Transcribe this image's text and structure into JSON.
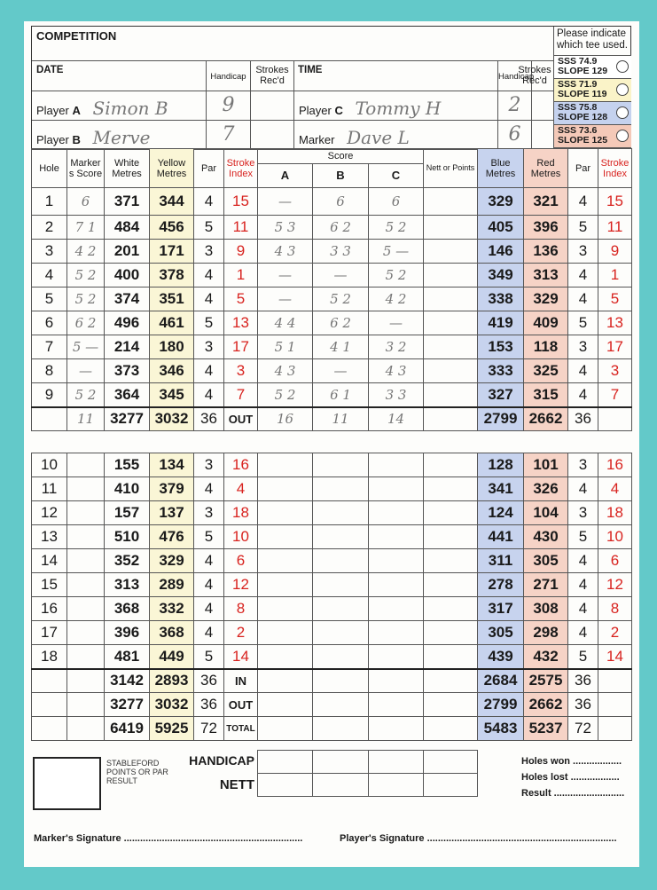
{
  "header": {
    "competition_label": "COMPETITION",
    "tee_note": "Please indicate which tee used.",
    "date_label": "DATE",
    "time_label": "TIME",
    "handicap_label": "Handicap",
    "strokes_label": "Strokes Rec'd",
    "players": [
      {
        "label_prefix": "Player",
        "label_letter": "A",
        "name": "Simon B",
        "handicap": "9"
      },
      {
        "label_prefix": "Player",
        "label_letter": "B",
        "name": "Merve",
        "handicap": "7"
      },
      {
        "label_prefix": "Player",
        "label_letter": "C",
        "name": "Tommy H",
        "handicap": "2"
      },
      {
        "label_prefix": "Marker",
        "label_letter": "",
        "name": "Dave L",
        "handicap": "6"
      }
    ],
    "tees": [
      {
        "sss": "SSS 74.9",
        "slope": "SLOPE 129",
        "color": "#ffffff"
      },
      {
        "sss": "SSS 71.9",
        "slope": "SLOPE 119",
        "color": "#faf3c8"
      },
      {
        "sss": "SSS 75.8",
        "slope": "SLOPE 128",
        "color": "#c5d2ee"
      },
      {
        "sss": "SSS 73.6",
        "slope": "SLOPE 125",
        "color": "#f4c9b8"
      }
    ]
  },
  "columns": {
    "hole": "Hole",
    "marker": "Marker s Score",
    "white": "White Metres",
    "yellow": "Yellow Metres",
    "par": "Par",
    "si": "Stroke Index",
    "score": "Score",
    "a": "A",
    "b": "B",
    "c": "C",
    "nett": "Nett or Points",
    "blue": "Blue Metres",
    "red": "Red Metres"
  },
  "holes": [
    {
      "hole": "1",
      "marker": "6",
      "white": "371",
      "yellow": "344",
      "par": "4",
      "si": "15",
      "a": "—",
      "b": "6",
      "c": "6",
      "blue": "329",
      "red": "321"
    },
    {
      "hole": "2",
      "marker": "7 1",
      "white": "484",
      "yellow": "456",
      "par": "5",
      "si": "11",
      "a": "5 3",
      "b": "6 2",
      "c": "5 2",
      "blue": "405",
      "red": "396"
    },
    {
      "hole": "3",
      "marker": "4 2",
      "white": "201",
      "yellow": "171",
      "par": "3",
      "si": "9",
      "a": "4 3",
      "b": "3 3",
      "c": "5 —",
      "blue": "146",
      "red": "136"
    },
    {
      "hole": "4",
      "marker": "5 2",
      "white": "400",
      "yellow": "378",
      "par": "4",
      "si": "1",
      "a": "—",
      "b": "—",
      "c": "5 2",
      "blue": "349",
      "red": "313"
    },
    {
      "hole": "5",
      "marker": "5 2",
      "white": "374",
      "yellow": "351",
      "par": "4",
      "si": "5",
      "a": "—",
      "b": "5 2",
      "c": "4 2",
      "blue": "338",
      "red": "329"
    },
    {
      "hole": "6",
      "marker": "6 2",
      "white": "496",
      "yellow": "461",
      "par": "5",
      "si": "13",
      "a": "4 4",
      "b": "6 2",
      "c": "—",
      "blue": "419",
      "red": "409"
    },
    {
      "hole": "7",
      "marker": "5 —",
      "white": "214",
      "yellow": "180",
      "par": "3",
      "si": "17",
      "a": "5 1",
      "b": "4 1",
      "c": "3 2",
      "blue": "153",
      "red": "118"
    },
    {
      "hole": "8",
      "marker": "—",
      "white": "373",
      "yellow": "346",
      "par": "4",
      "si": "3",
      "a": "4 3",
      "b": "—",
      "c": "4 3",
      "blue": "333",
      "red": "325"
    },
    {
      "hole": "9",
      "marker": "5 2",
      "white": "364",
      "yellow": "345",
      "par": "4",
      "si": "7",
      "a": "5 2",
      "b": "6 1",
      "c": "3 3",
      "blue": "327",
      "red": "315"
    },
    {
      "hole": "10",
      "marker": "",
      "white": "155",
      "yellow": "134",
      "par": "3",
      "si": "16",
      "a": "",
      "b": "",
      "c": "",
      "blue": "128",
      "red": "101"
    },
    {
      "hole": "11",
      "marker": "",
      "white": "410",
      "yellow": "379",
      "par": "4",
      "si": "4",
      "a": "",
      "b": "",
      "c": "",
      "blue": "341",
      "red": "326"
    },
    {
      "hole": "12",
      "marker": "",
      "white": "157",
      "yellow": "137",
      "par": "3",
      "si": "18",
      "a": "",
      "b": "",
      "c": "",
      "blue": "124",
      "red": "104"
    },
    {
      "hole": "13",
      "marker": "",
      "white": "510",
      "yellow": "476",
      "par": "5",
      "si": "10",
      "a": "",
      "b": "",
      "c": "",
      "blue": "441",
      "red": "430"
    },
    {
      "hole": "14",
      "marker": "",
      "white": "352",
      "yellow": "329",
      "par": "4",
      "si": "6",
      "a": "",
      "b": "",
      "c": "",
      "blue": "311",
      "red": "305"
    },
    {
      "hole": "15",
      "marker": "",
      "white": "313",
      "yellow": "289",
      "par": "4",
      "si": "12",
      "a": "",
      "b": "",
      "c": "",
      "blue": "278",
      "red": "271"
    },
    {
      "hole": "16",
      "marker": "",
      "white": "368",
      "yellow": "332",
      "par": "4",
      "si": "8",
      "a": "",
      "b": "",
      "c": "",
      "blue": "317",
      "red": "308"
    },
    {
      "hole": "17",
      "marker": "",
      "white": "396",
      "yellow": "368",
      "par": "4",
      "si": "2",
      "a": "",
      "b": "",
      "c": "",
      "blue": "305",
      "red": "298"
    },
    {
      "hole": "18",
      "marker": "",
      "white": "481",
      "yellow": "449",
      "par": "5",
      "si": "14",
      "a": "",
      "b": "",
      "c": "",
      "blue": "439",
      "red": "432"
    }
  ],
  "front_total": {
    "label": "OUT",
    "marker": "11",
    "white": "3277",
    "yellow": "3032",
    "par": "36",
    "a": "16",
    "b": "11",
    "c": "14",
    "blue": "2799",
    "red": "2662",
    "par2": "36"
  },
  "totals": [
    {
      "label": "IN",
      "white": "3142",
      "yellow": "2893",
      "par": "36",
      "blue": "2684",
      "red": "2575",
      "par2": "36"
    },
    {
      "label": "OUT",
      "white": "3277",
      "yellow": "3032",
      "par": "36",
      "blue": "2799",
      "red": "2662",
      "par2": "36"
    },
    {
      "label": "TOTAL",
      "white": "6419",
      "yellow": "5925",
      "par": "72",
      "blue": "5483",
      "red": "5237",
      "par2": "72"
    }
  ],
  "footer": {
    "stableford": "STABLEFORD POINTS OR PAR RESULT",
    "handicap": "HANDICAP",
    "nett": "NETT",
    "holes_won": "Holes won ..................",
    "holes_lost": "Holes lost ..................",
    "result": "Result ..........................",
    "marker_sig": "Marker's Signature ..................................................................",
    "player_sig": "Player's Signature ......................................................................"
  }
}
